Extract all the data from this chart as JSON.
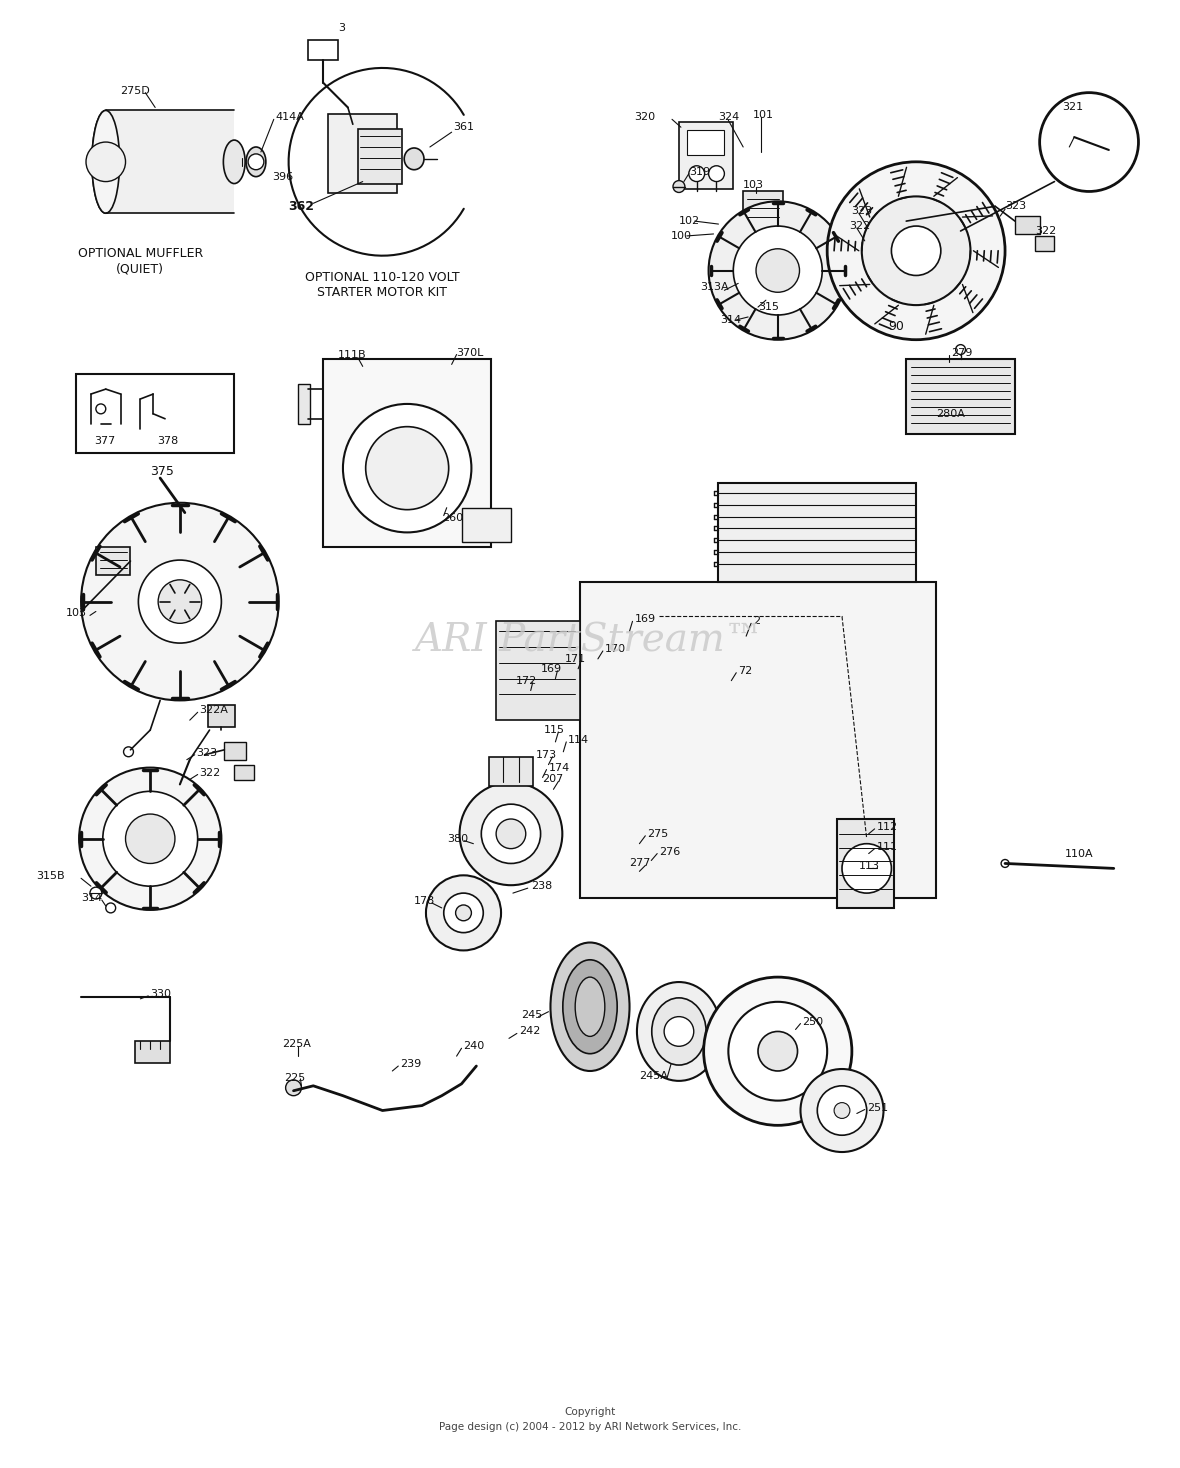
{
  "bg_color": "#ffffff",
  "line_color": "#111111",
  "text_color": "#111111",
  "watermark": "ARI PartStream™",
  "copyright_line1": "Copyright",
  "copyright_line2": "Page design (c) 2004 - 2012 by ARI Network Services, Inc.",
  "fig_w": 11.8,
  "fig_h": 14.68,
  "dpi": 100
}
